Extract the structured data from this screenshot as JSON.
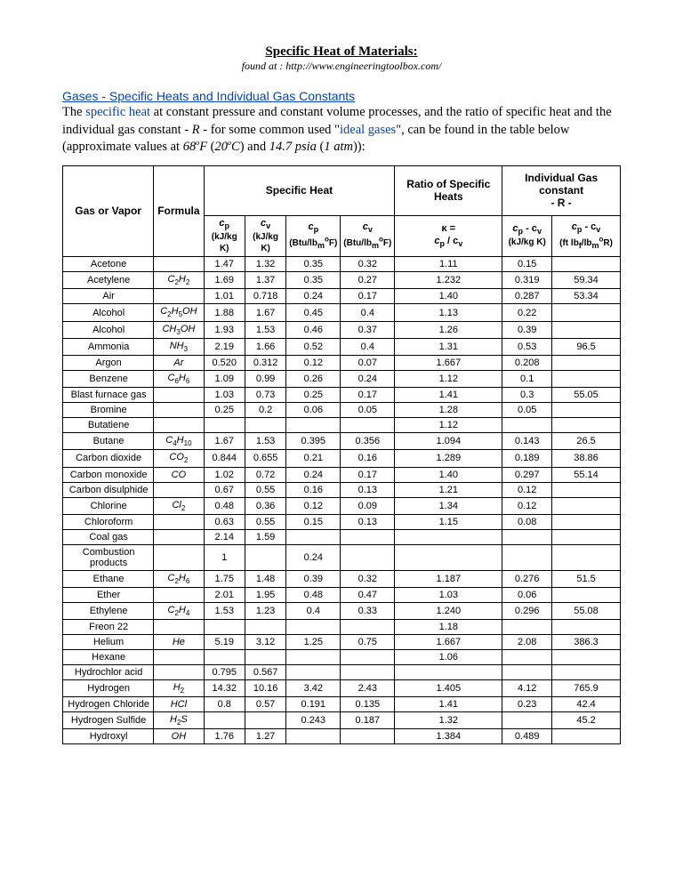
{
  "title": "Specific Heat of Materials:",
  "found_at_label": "found at : ",
  "found_at_url": "http://www.engineeringtoolbox.com/",
  "section_link": "Gases - Specific Heats and Individual Gas Constants",
  "intro_parts": {
    "p1": "The ",
    "specific_heat": "specific heat",
    "p2": " at constant pressure and constant volume processes, and the ratio of specific heat and the individual gas constant - ",
    "R": "R",
    "p3": " - for some common used \"",
    "ideal_gases": "ideal gases",
    "p4": "\", can be found in the table below (approximate values at ",
    "t1": "68",
    "t1unit": "F",
    "p5": " (",
    "t2": "20",
    "t2unit": "C",
    "p6": ") and ",
    "psia": "14.7 psia",
    "p7": " (",
    "atm": "1 atm",
    "p8": ")):"
  },
  "headers": {
    "gas_or_vapor": "Gas or Vapor",
    "formula": "Formula",
    "specific_heat": "Specific Heat",
    "ratio": "Ratio of Specific Heats",
    "gas_constant": "Individual Gas constant",
    "dash_r": "- R -",
    "cp": "c",
    "cv": "c",
    "kj": "(kJ/kg K)",
    "btu": "(Btu/lb",
    "btu_end": "F)",
    "k_eq": "κ =",
    "ratio_sub": "c",
    "slash": " / c",
    "diff": "c",
    "minus": " - c",
    "ft": "(ft lb",
    "ft_mid": "/lb",
    "ft_end": "R)"
  },
  "rows": [
    {
      "n": "Acetone",
      "f": "",
      "cp": "1.47",
      "cv": "1.32",
      "cpb": "0.35",
      "cvb": "0.32",
      "k": "1.11",
      "r1": "0.15",
      "r2": ""
    },
    {
      "n": "Acetylene",
      "f": "C2H2",
      "cp": "1.69",
      "cv": "1.37",
      "cpb": "0.35",
      "cvb": "0.27",
      "k": "1.232",
      "r1": "0.319",
      "r2": "59.34"
    },
    {
      "n": "Air",
      "f": "",
      "cp": "1.01",
      "cv": "0.718",
      "cpb": "0.24",
      "cvb": "0.17",
      "k": "1.40",
      "r1": "0.287",
      "r2": "53.34"
    },
    {
      "n": "Alcohol",
      "f": "C2H5OH",
      "cp": "1.88",
      "cv": "1.67",
      "cpb": "0.45",
      "cvb": "0.4",
      "k": "1.13",
      "r1": "0.22",
      "r2": ""
    },
    {
      "n": "Alcohol",
      "f": "CH3OH",
      "cp": "1.93",
      "cv": "1.53",
      "cpb": "0.46",
      "cvb": "0.37",
      "k": "1.26",
      "r1": "0.39",
      "r2": ""
    },
    {
      "n": "Ammonia",
      "f": "NH3",
      "cp": "2.19",
      "cv": "1.66",
      "cpb": "0.52",
      "cvb": "0.4",
      "k": "1.31",
      "r1": "0.53",
      "r2": "96.5"
    },
    {
      "n": "Argon",
      "f": "Ar",
      "cp": "0.520",
      "cv": "0.312",
      "cpb": "0.12",
      "cvb": "0.07",
      "k": "1.667",
      "r1": "0.208",
      "r2": ""
    },
    {
      "n": "Benzene",
      "f": "C6H6",
      "cp": "1.09",
      "cv": "0.99",
      "cpb": "0.26",
      "cvb": "0.24",
      "k": "1.12",
      "r1": "0.1",
      "r2": ""
    },
    {
      "n": "Blast furnace gas",
      "f": "",
      "cp": "1.03",
      "cv": "0.73",
      "cpb": "0.25",
      "cvb": "0.17",
      "k": "1.41",
      "r1": "0.3",
      "r2": "55.05"
    },
    {
      "n": "Bromine",
      "f": "",
      "cp": "0.25",
      "cv": "0.2",
      "cpb": "0.06",
      "cvb": "0.05",
      "k": "1.28",
      "r1": "0.05",
      "r2": ""
    },
    {
      "n": "Butatiene",
      "f": "",
      "cp": "",
      "cv": "",
      "cpb": "",
      "cvb": "",
      "k": "1.12",
      "r1": "",
      "r2": ""
    },
    {
      "n": "Butane",
      "f": "C4H10",
      "cp": "1.67",
      "cv": "1.53",
      "cpb": "0.395",
      "cvb": "0.356",
      "k": "1.094",
      "r1": "0.143",
      "r2": "26.5"
    },
    {
      "n": "Carbon dioxide",
      "f": "CO2",
      "cp": "0.844",
      "cv": "0.655",
      "cpb": "0.21",
      "cvb": "0.16",
      "k": "1.289",
      "r1": "0.189",
      "r2": "38.86"
    },
    {
      "n": "Carbon monoxide",
      "f": "CO",
      "cp": "1.02",
      "cv": "0.72",
      "cpb": "0.24",
      "cvb": "0.17",
      "k": "1.40",
      "r1": "0.297",
      "r2": "55.14"
    },
    {
      "n": "Carbon disulphide",
      "f": "",
      "cp": "0.67",
      "cv": "0.55",
      "cpb": "0.16",
      "cvb": "0.13",
      "k": "1.21",
      "r1": "0.12",
      "r2": ""
    },
    {
      "n": "Chlorine",
      "f": "Cl2",
      "cp": "0.48",
      "cv": "0.36",
      "cpb": "0.12",
      "cvb": "0.09",
      "k": "1.34",
      "r1": "0.12",
      "r2": ""
    },
    {
      "n": "Chloroform",
      "f": "",
      "cp": "0.63",
      "cv": "0.55",
      "cpb": "0.15",
      "cvb": "0.13",
      "k": "1.15",
      "r1": "0.08",
      "r2": ""
    },
    {
      "n": "Coal gas",
      "f": "",
      "cp": "2.14",
      "cv": "1.59",
      "cpb": "",
      "cvb": "",
      "k": "",
      "r1": "",
      "r2": ""
    },
    {
      "n": "Combustion products",
      "f": "",
      "cp": "1",
      "cv": "",
      "cpb": "0.24",
      "cvb": "",
      "k": "",
      "r1": "",
      "r2": ""
    },
    {
      "n": "Ethane",
      "f": "C2H6",
      "cp": "1.75",
      "cv": "1.48",
      "cpb": "0.39",
      "cvb": "0.32",
      "k": "1.187",
      "r1": "0.276",
      "r2": "51.5"
    },
    {
      "n": "Ether",
      "f": "",
      "cp": "2.01",
      "cv": "1.95",
      "cpb": "0.48",
      "cvb": "0.47",
      "k": "1.03",
      "r1": "0.06",
      "r2": ""
    },
    {
      "n": "Ethylene",
      "f": "C2H4",
      "cp": "1.53",
      "cv": "1.23",
      "cpb": "0.4",
      "cvb": "0.33",
      "k": "1.240",
      "r1": "0.296",
      "r2": "55.08"
    },
    {
      "n": "Freon 22",
      "f": "",
      "cp": "",
      "cv": "",
      "cpb": "",
      "cvb": "",
      "k": "1.18",
      "r1": "",
      "r2": ""
    },
    {
      "n": "Helium",
      "f": "He",
      "cp": "5.19",
      "cv": "3.12",
      "cpb": "1.25",
      "cvb": "0.75",
      "k": "1.667",
      "r1": "2.08",
      "r2": "386.3"
    },
    {
      "n": "Hexane",
      "f": "",
      "cp": "",
      "cv": "",
      "cpb": "",
      "cvb": "",
      "k": "1.06",
      "r1": "",
      "r2": ""
    },
    {
      "n": "Hydrochlor acid",
      "f": "",
      "cp": "0.795",
      "cv": "0.567",
      "cpb": "",
      "cvb": "",
      "k": "",
      "r1": "",
      "r2": ""
    },
    {
      "n": "Hydrogen",
      "f": "H2",
      "cp": "14.32",
      "cv": "10.16",
      "cpb": "3.42",
      "cvb": "2.43",
      "k": "1.405",
      "r1": "4.12",
      "r2": "765.9"
    },
    {
      "n": "Hydrogen Chloride",
      "f": "HCl",
      "cp": "0.8",
      "cv": "0.57",
      "cpb": "0.191",
      "cvb": "0.135",
      "k": "1.41",
      "r1": "0.23",
      "r2": "42.4"
    },
    {
      "n": "Hydrogen Sulfide",
      "f": "H2S",
      "cp": "",
      "cv": "",
      "cpb": "0.243",
      "cvb": "0.187",
      "k": "1.32",
      "r1": "",
      "r2": "45.2"
    },
    {
      "n": "Hydroxyl",
      "f": "OH",
      "cp": "1.76",
      "cv": "1.27",
      "cpb": "",
      "cvb": "",
      "k": "1.384",
      "r1": "0.489",
      "r2": ""
    }
  ]
}
